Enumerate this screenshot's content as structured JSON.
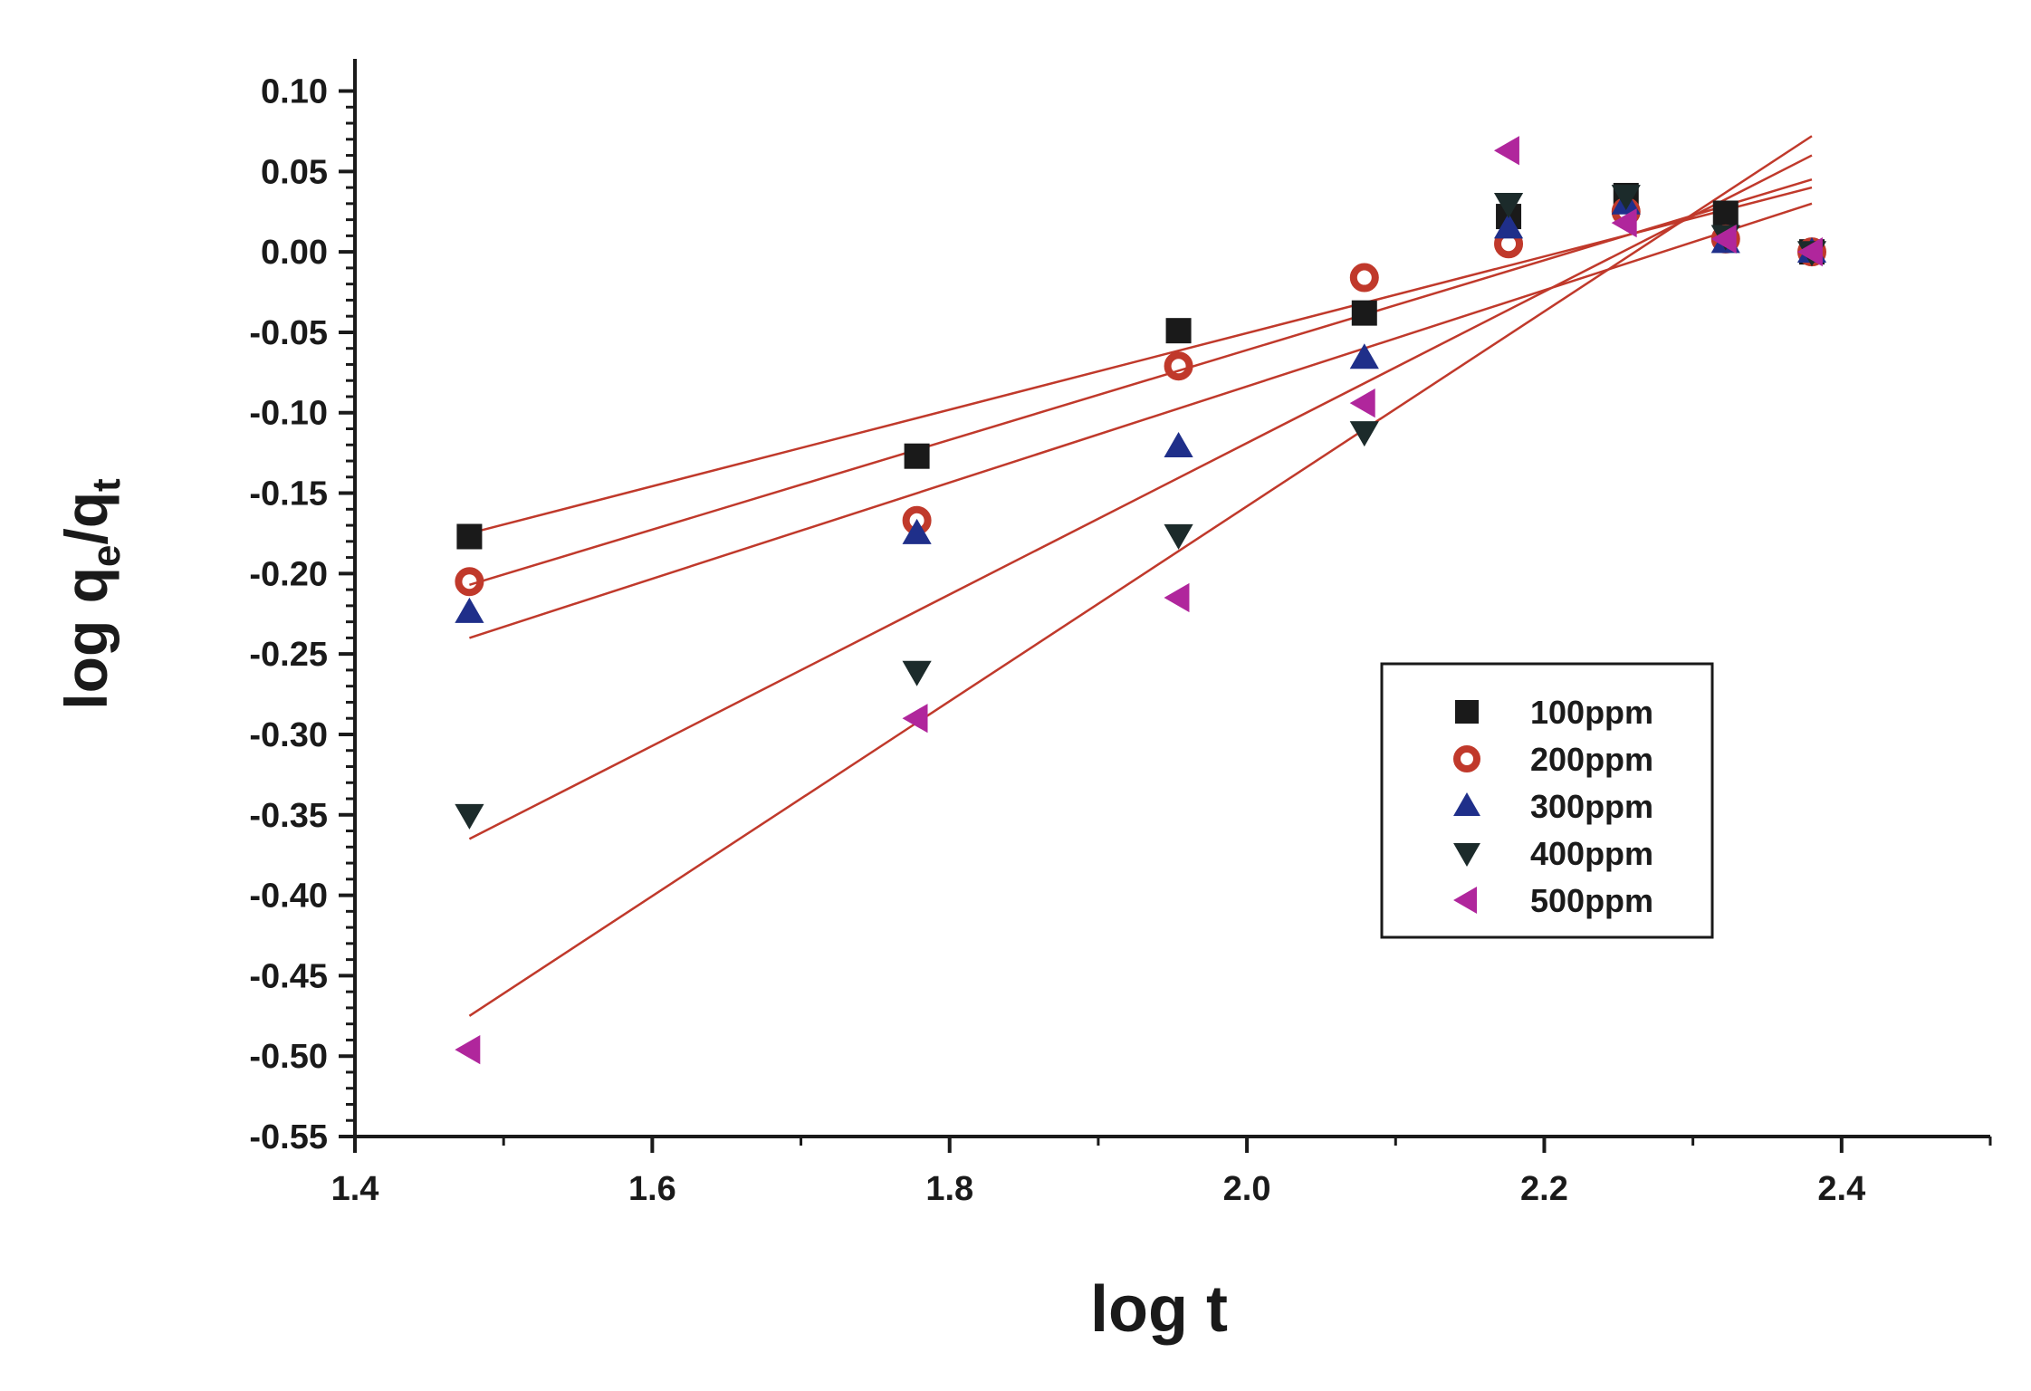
{
  "chart_data": {
    "type": "scatter",
    "title": "",
    "xlabel": "log t",
    "ylabel_parts": {
      "base": "log q",
      "sub1": "e",
      "slash": "/q",
      "sub2": "t"
    },
    "xlim": [
      1.4,
      2.5
    ],
    "ylim": [
      -0.55,
      0.12
    ],
    "xticks": [
      1.4,
      1.6,
      1.8,
      2.0,
      2.2,
      2.4
    ],
    "xtick_labels": [
      "1.4",
      "1.6",
      "1.8",
      "2.0",
      "2.2",
      "2.4"
    ],
    "yticks": [
      0.1,
      0.05,
      0.0,
      -0.05,
      -0.1,
      -0.15,
      -0.2,
      -0.25,
      -0.3,
      -0.35,
      -0.4,
      -0.45,
      -0.5,
      -0.55
    ],
    "ytick_labels": [
      "0.10",
      "0.05",
      "0.00",
      "-0.05",
      "-0.10",
      "-0.15",
      "-0.20",
      "-0.25",
      "-0.30",
      "-0.35",
      "-0.40",
      "-0.45",
      "-0.50",
      "-0.55"
    ],
    "legend_position": "right",
    "fit_line_color": "#c0392b",
    "series": [
      {
        "name": "100ppm",
        "marker": "square",
        "color": "#1a1a1a",
        "x": [
          1.477,
          1.778,
          1.954,
          2.079,
          2.176,
          2.255,
          2.322,
          2.38
        ],
        "y": [
          -0.177,
          -0.127,
          -0.049,
          -0.038,
          0.022,
          0.035,
          0.024,
          0.0
        ],
        "fit": {
          "x": [
            1.477,
            2.38
          ],
          "y": [
            -0.175,
            0.04
          ]
        }
      },
      {
        "name": "200ppm",
        "marker": "circle",
        "color": "#c0392b",
        "x": [
          1.477,
          1.778,
          1.954,
          2.079,
          2.176,
          2.255,
          2.322,
          2.38
        ],
        "y": [
          -0.205,
          -0.167,
          -0.071,
          -0.016,
          0.005,
          0.025,
          0.008,
          0.0
        ],
        "fit": {
          "x": [
            1.477,
            2.38
          ],
          "y": [
            -0.207,
            0.045
          ]
        }
      },
      {
        "name": "300ppm",
        "marker": "triangle-up",
        "color": "#1f2f8a",
        "x": [
          1.477,
          1.778,
          1.954,
          2.079,
          2.176,
          2.255,
          2.322,
          2.38
        ],
        "y": [
          -0.224,
          -0.175,
          -0.121,
          -0.066,
          0.015,
          0.03,
          0.006,
          0.0
        ],
        "fit": {
          "x": [
            1.477,
            2.38
          ],
          "y": [
            -0.24,
            0.03
          ]
        }
      },
      {
        "name": "400ppm",
        "marker": "triangle-down",
        "color": "#1c2b2b",
        "x": [
          1.477,
          1.778,
          1.954,
          2.079,
          2.176,
          2.255,
          2.322,
          2.38
        ],
        "y": [
          -0.35,
          -0.261,
          -0.176,
          -0.112,
          0.03,
          0.035,
          0.01,
          0.0
        ],
        "fit": {
          "x": [
            1.477,
            2.38
          ],
          "y": [
            -0.365,
            0.06
          ]
        }
      },
      {
        "name": "500ppm",
        "marker": "triangle-left",
        "color": "#b0269c",
        "x": [
          1.477,
          1.778,
          1.954,
          2.079,
          2.176,
          2.255,
          2.322,
          2.38
        ],
        "y": [
          -0.496,
          -0.29,
          -0.215,
          -0.094,
          0.063,
          0.018,
          0.008,
          0.0
        ],
        "fit": {
          "x": [
            1.477,
            2.38
          ],
          "y": [
            -0.475,
            0.072
          ]
        }
      }
    ]
  }
}
